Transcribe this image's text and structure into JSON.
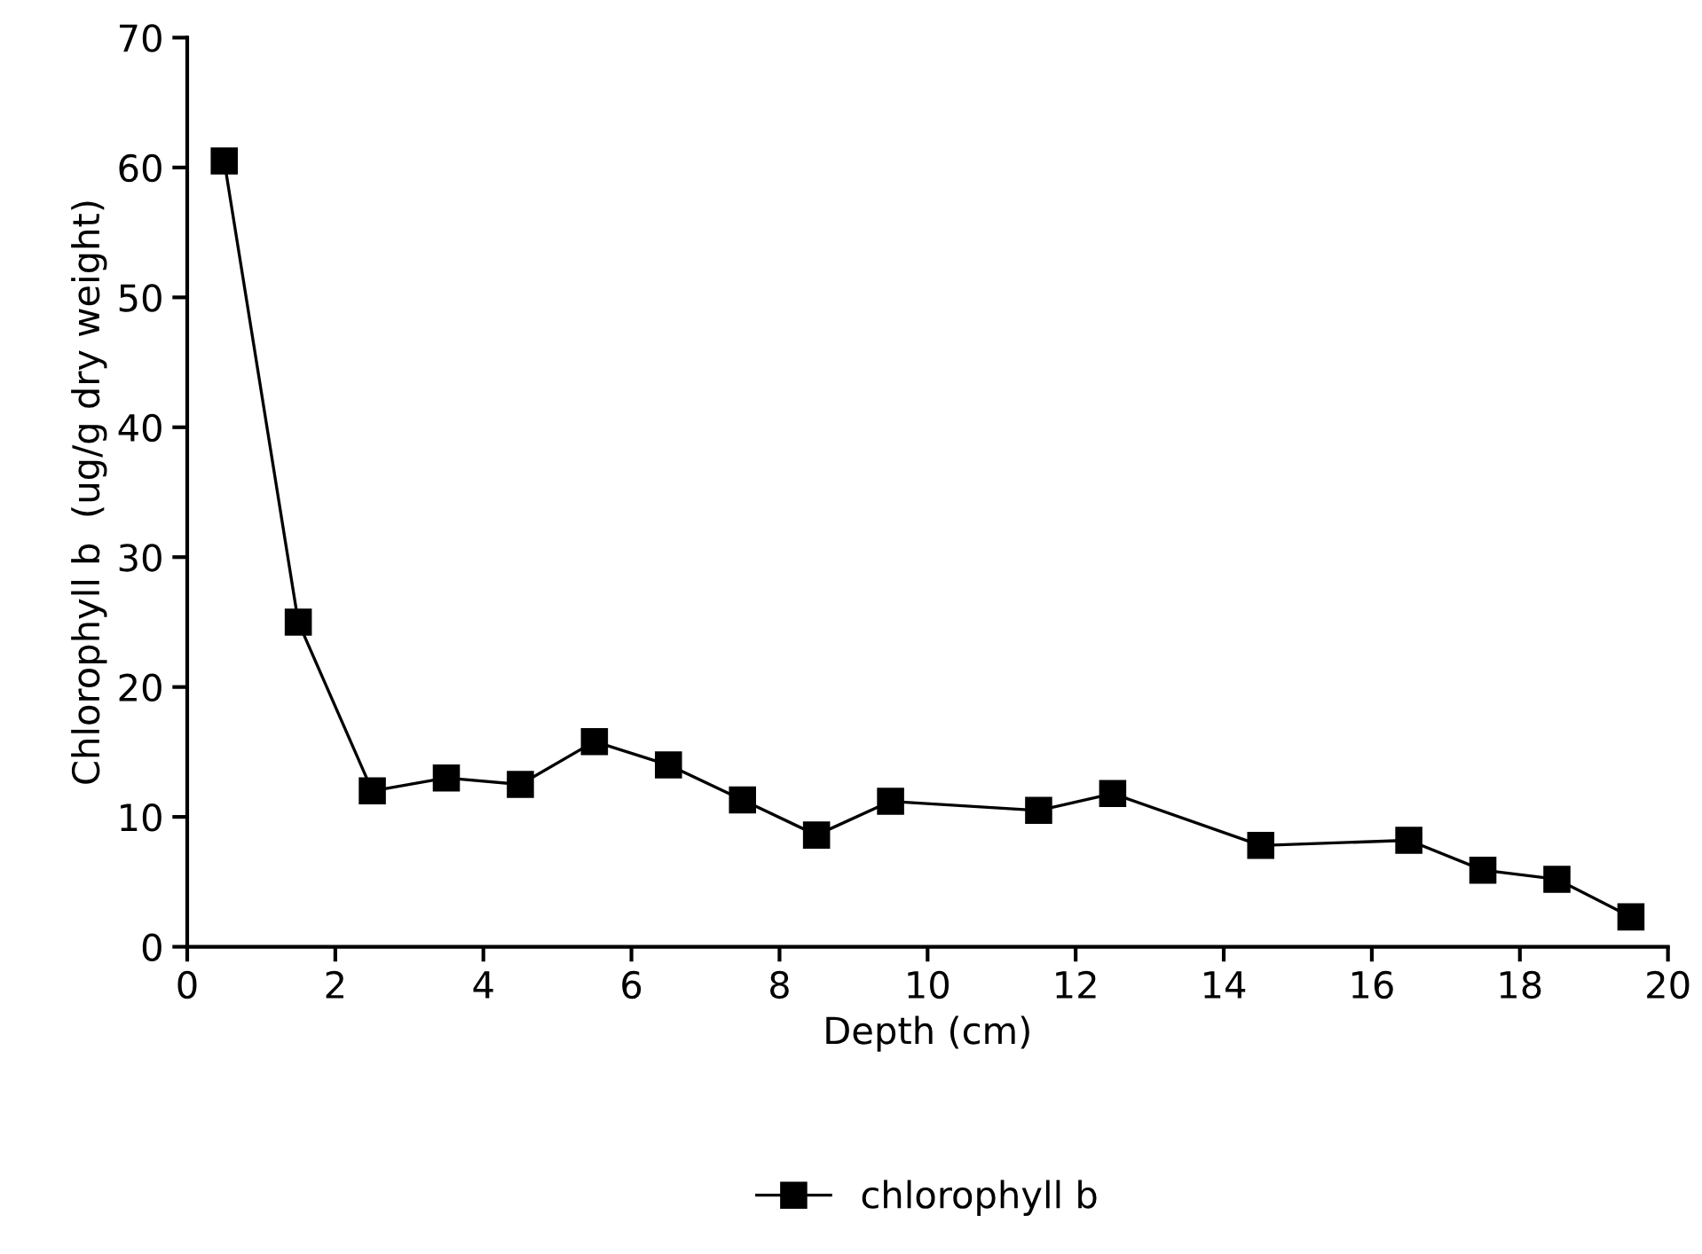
{
  "chart_data": {
    "type": "line",
    "xlabel": "Depth (cm)",
    "ylabel": "Chlorophyll b  (ug/g dry weight)",
    "x": [
      0.5,
      1.5,
      2.5,
      3.5,
      4.5,
      5.5,
      6.5,
      7.5,
      8.5,
      9.5,
      11.5,
      12.5,
      14.5,
      16.5,
      17.5,
      18.5,
      19.5
    ],
    "series": [
      {
        "name": "chlorophyll b",
        "color": "#000000",
        "values": [
          60.5,
          25,
          12,
          13,
          12.5,
          15.8,
          14,
          11.3,
          8.6,
          11.2,
          10.5,
          11.8,
          7.8,
          8.2,
          5.9,
          5.2,
          2.3
        ]
      }
    ],
    "xlim": [
      0,
      20
    ],
    "xticks": [
      0,
      2,
      4,
      6,
      8,
      10,
      12,
      14,
      16,
      18,
      20
    ],
    "ylim": [
      0,
      70
    ],
    "yticks": [
      0,
      10,
      20,
      30,
      40,
      50,
      60,
      70
    ],
    "grid": false,
    "legend": "bottom",
    "marker": "square",
    "line_style": "solid"
  }
}
